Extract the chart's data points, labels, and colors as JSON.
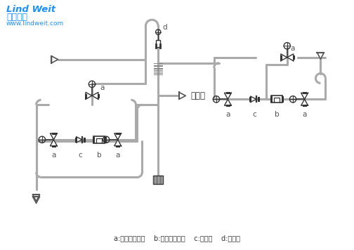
{
  "logo_line1": "Lind Weit",
  "logo_line2": "林德伟特",
  "logo_line3": "www.lindweit.com",
  "legend_text": "a:波纹管截止阀    b:倒吊桶疏水阀    c:止回阀    d:排气阀",
  "go_to_device": "去设备",
  "bg_color": "#ffffff",
  "pipe_color": "#aaaaaa",
  "line_color": "#333333",
  "logo_color": "#1E90FF",
  "pipe_lw": 2.2,
  "thin_lw": 1.0
}
